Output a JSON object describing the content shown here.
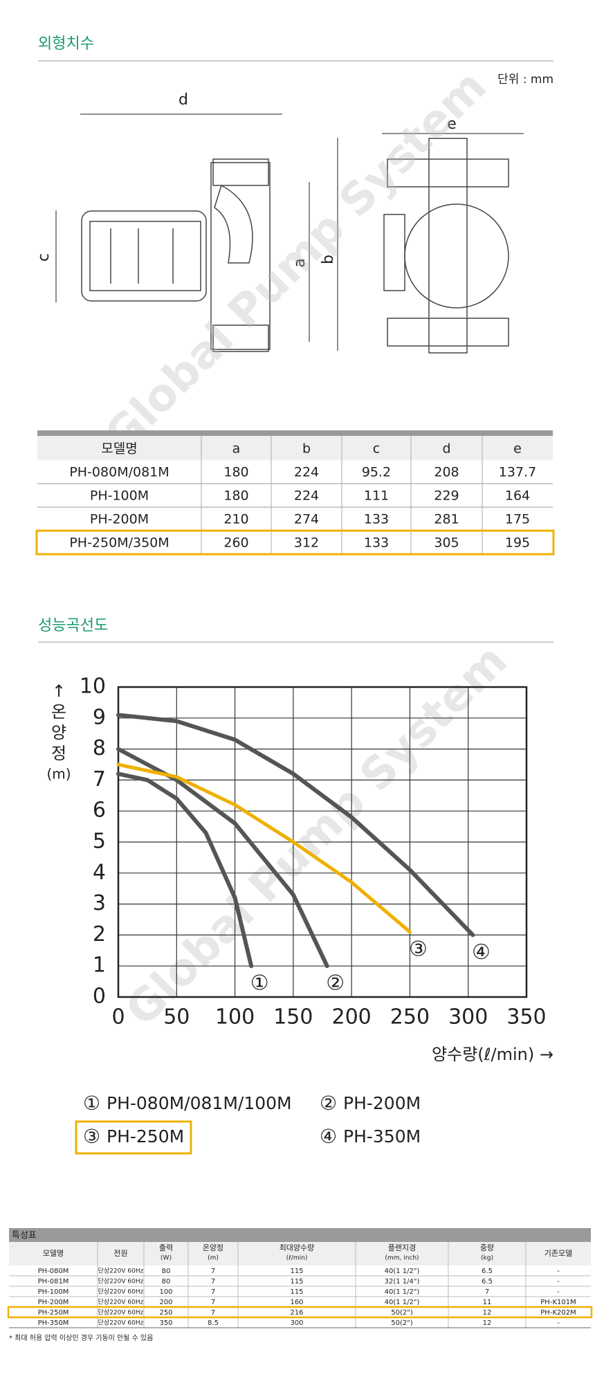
{
  "watermark": "Global Pump System",
  "dimensions": {
    "title": "외형치수",
    "unit": "단위 : mm",
    "labels": {
      "d": "d",
      "e": "e",
      "c": "c",
      "a": "a",
      "b": "b"
    },
    "table": {
      "columns": [
        "모델명",
        "a",
        "b",
        "c",
        "d",
        "e"
      ],
      "rows": [
        [
          "PH-080M/081M",
          180,
          224,
          95.2,
          208,
          137.7
        ],
        [
          "PH-100M",
          180,
          224,
          111,
          229,
          164
        ],
        [
          "PH-200M",
          210,
          274,
          133,
          281,
          175
        ],
        [
          "PH-250M/350M",
          260,
          312,
          133,
          305,
          195
        ]
      ],
      "highlight_row": 3
    }
  },
  "performance": {
    "title": "성능곡선도",
    "chart_data": {
      "type": "line",
      "y_label": [
        "↑",
        "온",
        "양",
        "정",
        "(m)"
      ],
      "x_label": "양수량(ℓ/min) →",
      "xlim": [
        0,
        350
      ],
      "ylim": [
        0,
        10
      ],
      "xticks": [
        0,
        50,
        100,
        150,
        200,
        250,
        300,
        350
      ],
      "yticks": [
        0,
        1,
        2,
        3,
        4,
        5,
        6,
        7,
        8,
        9,
        10
      ],
      "grid": true,
      "highlight_series": 2,
      "series": [
        {
          "label": "①",
          "name": "PH-080M/081M/100M",
          "color": "#555555",
          "x": [
            0,
            25,
            50,
            75,
            100,
            114
          ],
          "values": [
            7.2,
            7.0,
            6.4,
            5.3,
            3.2,
            1.0
          ]
        },
        {
          "label": "②",
          "name": "PH-200M",
          "color": "#555555",
          "x": [
            0,
            50,
            100,
            150,
            179
          ],
          "values": [
            8.0,
            7.0,
            5.6,
            3.3,
            1.0
          ]
        },
        {
          "label": "③",
          "name": "PH-250M",
          "color": "#f0b000",
          "x": [
            0,
            50,
            100,
            150,
            200,
            250
          ],
          "values": [
            7.5,
            7.1,
            6.2,
            5.0,
            3.7,
            2.1
          ]
        },
        {
          "label": "④",
          "name": "PH-350M",
          "color": "#555555",
          "x": [
            0,
            50,
            100,
            150,
            200,
            250,
            304
          ],
          "values": [
            9.1,
            8.9,
            8.3,
            7.2,
            5.8,
            4.1,
            2.0
          ]
        }
      ]
    }
  },
  "specs": {
    "title": "특성표",
    "columns": [
      [
        "모델명"
      ],
      [
        "전원"
      ],
      [
        "출력",
        "(W)"
      ],
      [
        "온양정",
        "(m)"
      ],
      [
        "최대양수량",
        "(ℓ/min)"
      ],
      [
        "플랜지경",
        "(mm, inch)"
      ],
      [
        "중량",
        "(kg)"
      ],
      [
        "기존모델"
      ]
    ],
    "rows": [
      [
        "PH-080M",
        "단상220V 60Hz",
        80,
        7,
        115,
        "40(1 1/2\")",
        6.5,
        "-"
      ],
      [
        "PH-081M",
        "단상220V 60Hz",
        80,
        7,
        115,
        "32(1 1/4\")",
        6.5,
        "-"
      ],
      [
        "PH-100M",
        "단상220V 60Hz",
        100,
        7,
        115,
        "40(1 1/2\")",
        7,
        "-"
      ],
      [
        "PH-200M",
        "단상220V 60Hz",
        200,
        7,
        160,
        "40(1 1/2\")",
        11,
        "PH-K101M"
      ],
      [
        "PH-250M",
        "단상220V 60Hz",
        250,
        7,
        216,
        "50(2\")",
        12,
        "PH-K202M"
      ],
      [
        "PH-350M",
        "단상220V 60Hz",
        350,
        8.5,
        300,
        "50(2\")",
        12,
        "-"
      ]
    ],
    "highlight_row": 4,
    "note": "* 최대 허용 압력 이상인 경우 기동이 안될 수 있음"
  }
}
